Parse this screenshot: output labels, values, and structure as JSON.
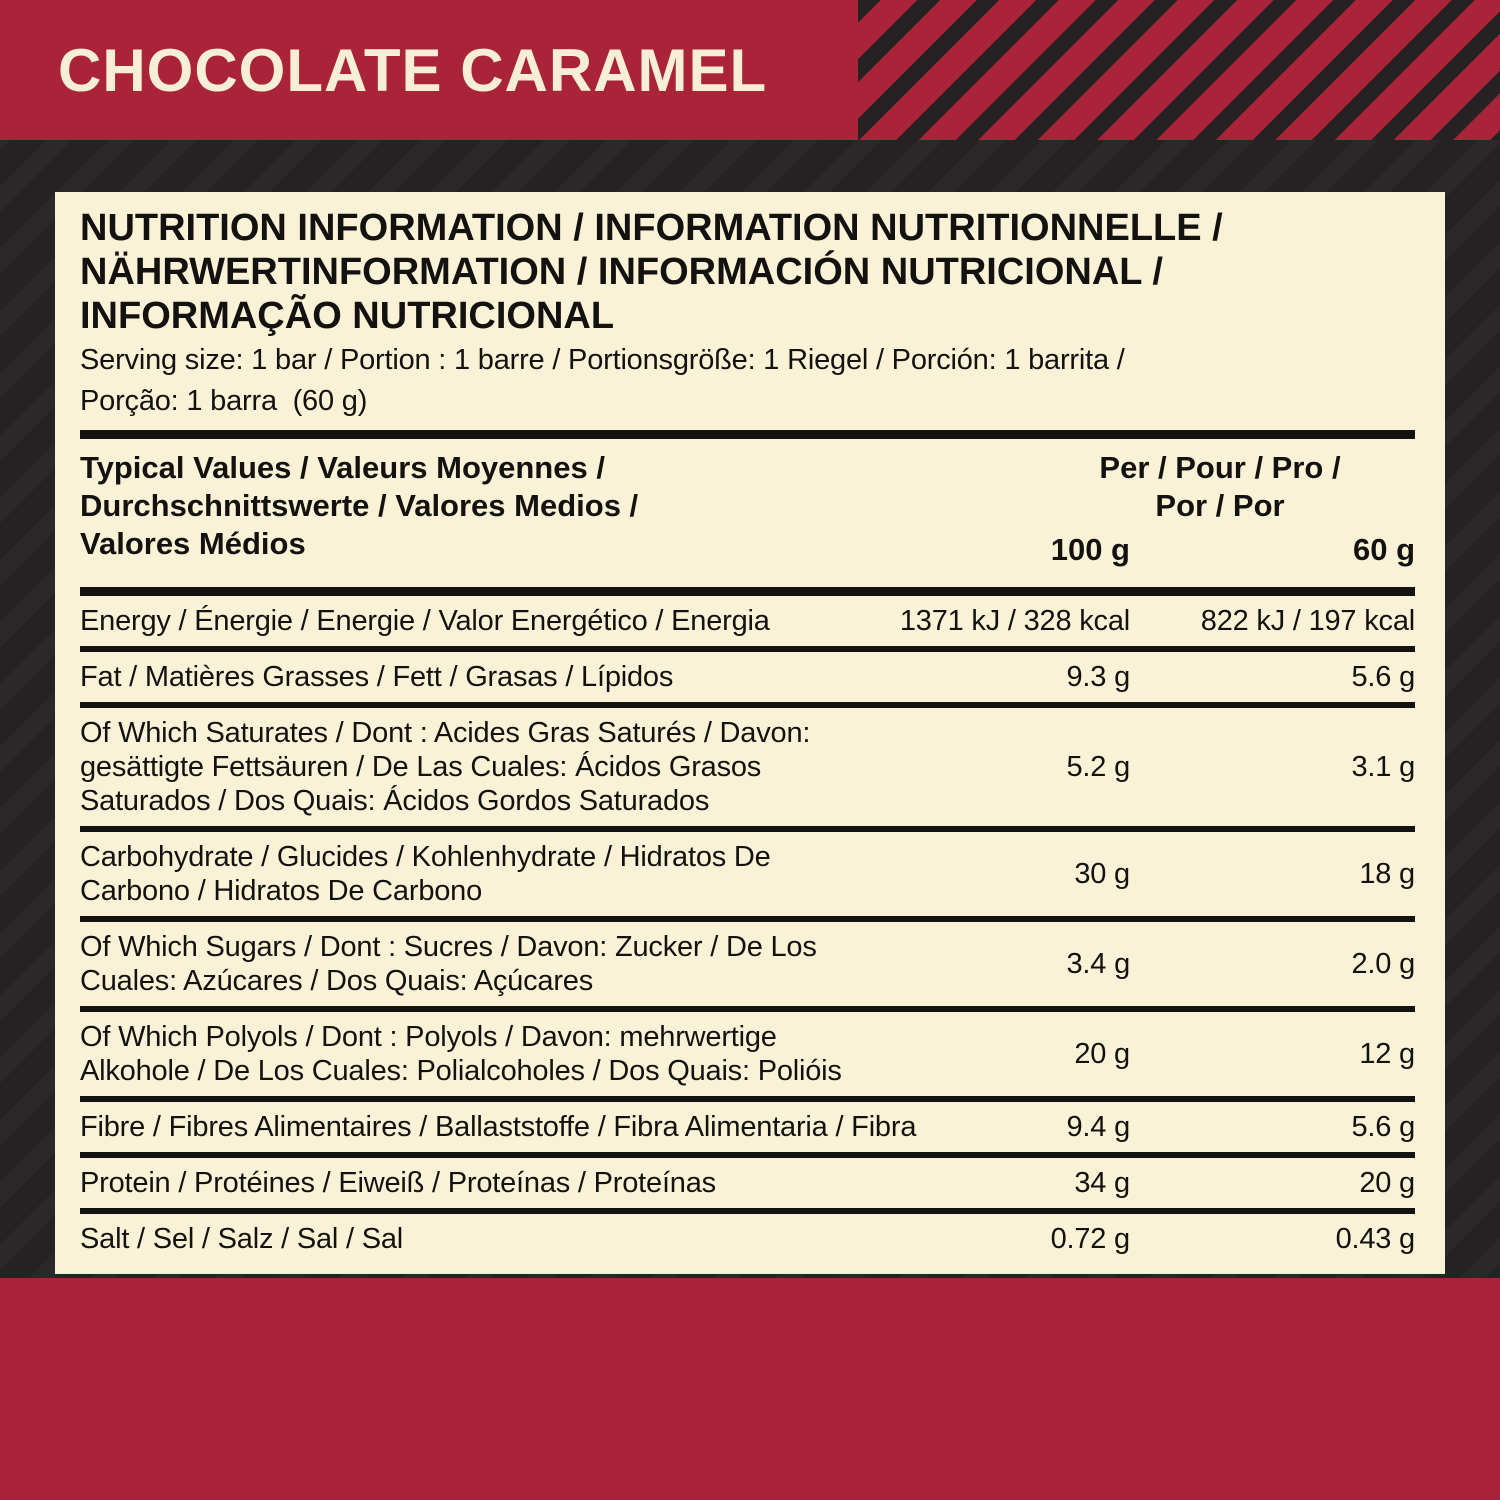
{
  "banner": {
    "title": "CHOCOLATE CARAMEL"
  },
  "panel": {
    "title_lines": [
      "NUTRITION INFORMATION / INFORMATION NUTRITIONNELLE /",
      "NÄHRWERTINFORMATION / INFORMACIÓN NUTRICIONAL /",
      "INFORMAÇÃO NUTRICIONAL"
    ],
    "serving_lines": [
      "Serving size: 1 bar / Portion : 1 barre / Portionsgröße: 1 Riegel / Porción: 1 barrita /",
      "Porção: 1 barra  (60 g)"
    ],
    "header": {
      "label_lines": [
        "Typical Values / Valeurs Moyennes /",
        "Durchschnittswerte / Valores Medios /",
        "Valores Médios"
      ],
      "per_lines": [
        "Per / Pour / Pro /",
        "Por / Por"
      ],
      "unit_col1": "100 g",
      "unit_col2": "60 g"
    },
    "rows": [
      {
        "label": "Energy / Énergie / Energie / Valor Energético / Energia",
        "per100": "1371 kJ / 328 kcal",
        "per60": "822 kJ / 197 kcal"
      },
      {
        "label": "Fat / Matières Grasses / Fett / Grasas / Lípidos",
        "per100": "9.3 g",
        "per60": "5.6 g"
      },
      {
        "label": "Of Which Saturates / Dont : Acides Gras Saturés / Davon: gesättigte Fettsäuren / De Las Cuales: Ácidos Grasos Saturados / Dos Quais: Ácidos Gordos Saturados",
        "per100": "5.2 g",
        "per60": "3.1 g"
      },
      {
        "label": "Carbohydrate / Glucides / Kohlenhydrate / Hidratos De Carbono / Hidratos De Carbono",
        "per100": "30 g",
        "per60": "18 g"
      },
      {
        "label": "Of Which Sugars / Dont : Sucres / Davon: Zucker / De Los Cuales: Azúcares / Dos Quais: Açúcares",
        "per100": "3.4 g",
        "per60": "2.0 g"
      },
      {
        "label": "Of Which Polyols / Dont : Polyols / Davon: mehrwertige Alkohole / De Los Cuales: Polialcoholes / Dos Quais: Polióis",
        "per100": "20 g",
        "per60": "12 g"
      },
      {
        "label": "Fibre / Fibres Alimentaires / Ballaststoffe / Fibra Alimentaria / Fibra",
        "per100": "9.4 g",
        "per60": "5.6 g"
      },
      {
        "label": "Protein / Protéines / Eiweiß / Proteínas / Proteínas",
        "per100": "34 g",
        "per60": "20 g"
      },
      {
        "label": "Salt / Sel / Salz / Sal / Sal",
        "per100": "0.72 g",
        "per60": "0.43 g"
      }
    ]
  },
  "colors": {
    "red": "#a92438",
    "cream": "#faf2d7",
    "dark": "#262223",
    "ink": "#141210",
    "banner_text": "#f7eed6"
  }
}
